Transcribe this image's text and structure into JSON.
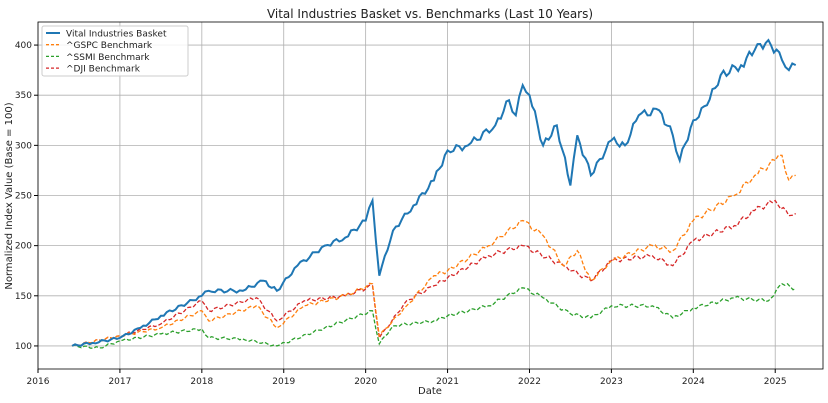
{
  "chart_data": {
    "type": "line",
    "title": "Vital Industries Basket vs. Benchmarks (Last 10 Years)",
    "xlabel": "Date",
    "ylabel": "Normalized Index Value (Base = 100)",
    "xlim": [
      "2016-01",
      "2025-08"
    ],
    "ylim": [
      77,
      423
    ],
    "xticks": [
      "2016",
      "2017",
      "2018",
      "2019",
      "2020",
      "2021",
      "2022",
      "2023",
      "2024",
      "2025"
    ],
    "yticks": [
      100,
      150,
      200,
      250,
      300,
      350,
      400
    ],
    "grid": true,
    "legend_placement": "upper-left",
    "series": [
      {
        "name": "Vital Industries Basket",
        "color": "#1f77b4",
        "style": "solid",
        "x": [
          "2016-06",
          "2016-09",
          "2017-01",
          "2017-04",
          "2017-07",
          "2018-01",
          "2018-02",
          "2018-07",
          "2018-10",
          "2018-12",
          "2019-03",
          "2019-07",
          "2019-10",
          "2020-01",
          "2020-02",
          "2020-03",
          "2020-05",
          "2020-08",
          "2020-11",
          "2021-01",
          "2021-04",
          "2021-08",
          "2021-10",
          "2021-11",
          "2021-12",
          "2022-01",
          "2022-03",
          "2022-05",
          "2022-07",
          "2022-08",
          "2022-10",
          "2023-01",
          "2023-03",
          "2023-05",
          "2023-08",
          "2023-10",
          "2023-11",
          "2024-01",
          "2024-03",
          "2024-05",
          "2024-08",
          "2024-10",
          "2024-12",
          "2025-02",
          "2025-03",
          "2025-04"
        ],
        "y": [
          100,
          103,
          108,
          118,
          130,
          150,
          155,
          155,
          165,
          155,
          180,
          200,
          208,
          225,
          245,
          170,
          215,
          240,
          265,
          295,
          300,
          320,
          345,
          330,
          360,
          350,
          300,
          320,
          260,
          310,
          270,
          305,
          300,
          330,
          335,
          310,
          285,
          325,
          340,
          370,
          380,
          395,
          405,
          385,
          375,
          380
        ]
      },
      {
        "name": "^GSPC Benchmark",
        "color": "#ff7f0e",
        "style": "dashed",
        "x": [
          "2016-06",
          "2017-01",
          "2017-07",
          "2018-01",
          "2018-02",
          "2018-09",
          "2018-12",
          "2019-04",
          "2019-10",
          "2020-02",
          "2020-03",
          "2020-07",
          "2020-11",
          "2021-01",
          "2021-07",
          "2021-12",
          "2022-03",
          "2022-06",
          "2022-08",
          "2022-10",
          "2023-01",
          "2023-07",
          "2023-10",
          "2024-01",
          "2024-07",
          "2024-10",
          "2025-01",
          "2025-02",
          "2025-03",
          "2025-04"
        ],
        "y": [
          100,
          110,
          118,
          135,
          125,
          140,
          118,
          140,
          150,
          162,
          110,
          140,
          170,
          175,
          200,
          225,
          210,
          180,
          195,
          165,
          185,
          200,
          195,
          225,
          250,
          270,
          285,
          290,
          265,
          270
        ]
      },
      {
        "name": "^SSMI Benchmark",
        "color": "#2ca02c",
        "style": "dashed",
        "x": [
          "2016-06",
          "2016-10",
          "2017-01",
          "2017-07",
          "2018-01",
          "2018-02",
          "2018-07",
          "2018-12",
          "2019-07",
          "2020-02",
          "2020-03",
          "2020-05",
          "2020-11",
          "2021-01",
          "2021-07",
          "2021-12",
          "2022-03",
          "2022-07",
          "2022-10",
          "2023-01",
          "2023-07",
          "2023-10",
          "2024-01",
          "2024-07",
          "2024-12",
          "2025-02",
          "2025-04"
        ],
        "y": [
          100,
          98,
          105,
          112,
          117,
          108,
          107,
          100,
          118,
          135,
          102,
          120,
          125,
          130,
          140,
          158,
          148,
          132,
          128,
          140,
          140,
          128,
          138,
          148,
          145,
          162,
          157
        ]
      },
      {
        "name": "^DJI Benchmark",
        "color": "#d62728",
        "style": "dashed",
        "x": [
          "2016-06",
          "2017-01",
          "2017-07",
          "2018-01",
          "2018-02",
          "2018-09",
          "2018-12",
          "2019-04",
          "2019-10",
          "2020-02",
          "2020-03",
          "2020-07",
          "2020-11",
          "2021-01",
          "2021-07",
          "2021-12",
          "2022-06",
          "2022-10",
          "2023-01",
          "2023-07",
          "2023-10",
          "2024-01",
          "2024-07",
          "2024-10",
          "2025-01",
          "2025-03",
          "2025-04"
        ],
        "y": [
          100,
          110,
          122,
          145,
          135,
          148,
          125,
          145,
          150,
          160,
          108,
          145,
          160,
          168,
          190,
          200,
          180,
          165,
          185,
          190,
          180,
          205,
          220,
          235,
          245,
          230,
          232
        ]
      }
    ]
  }
}
